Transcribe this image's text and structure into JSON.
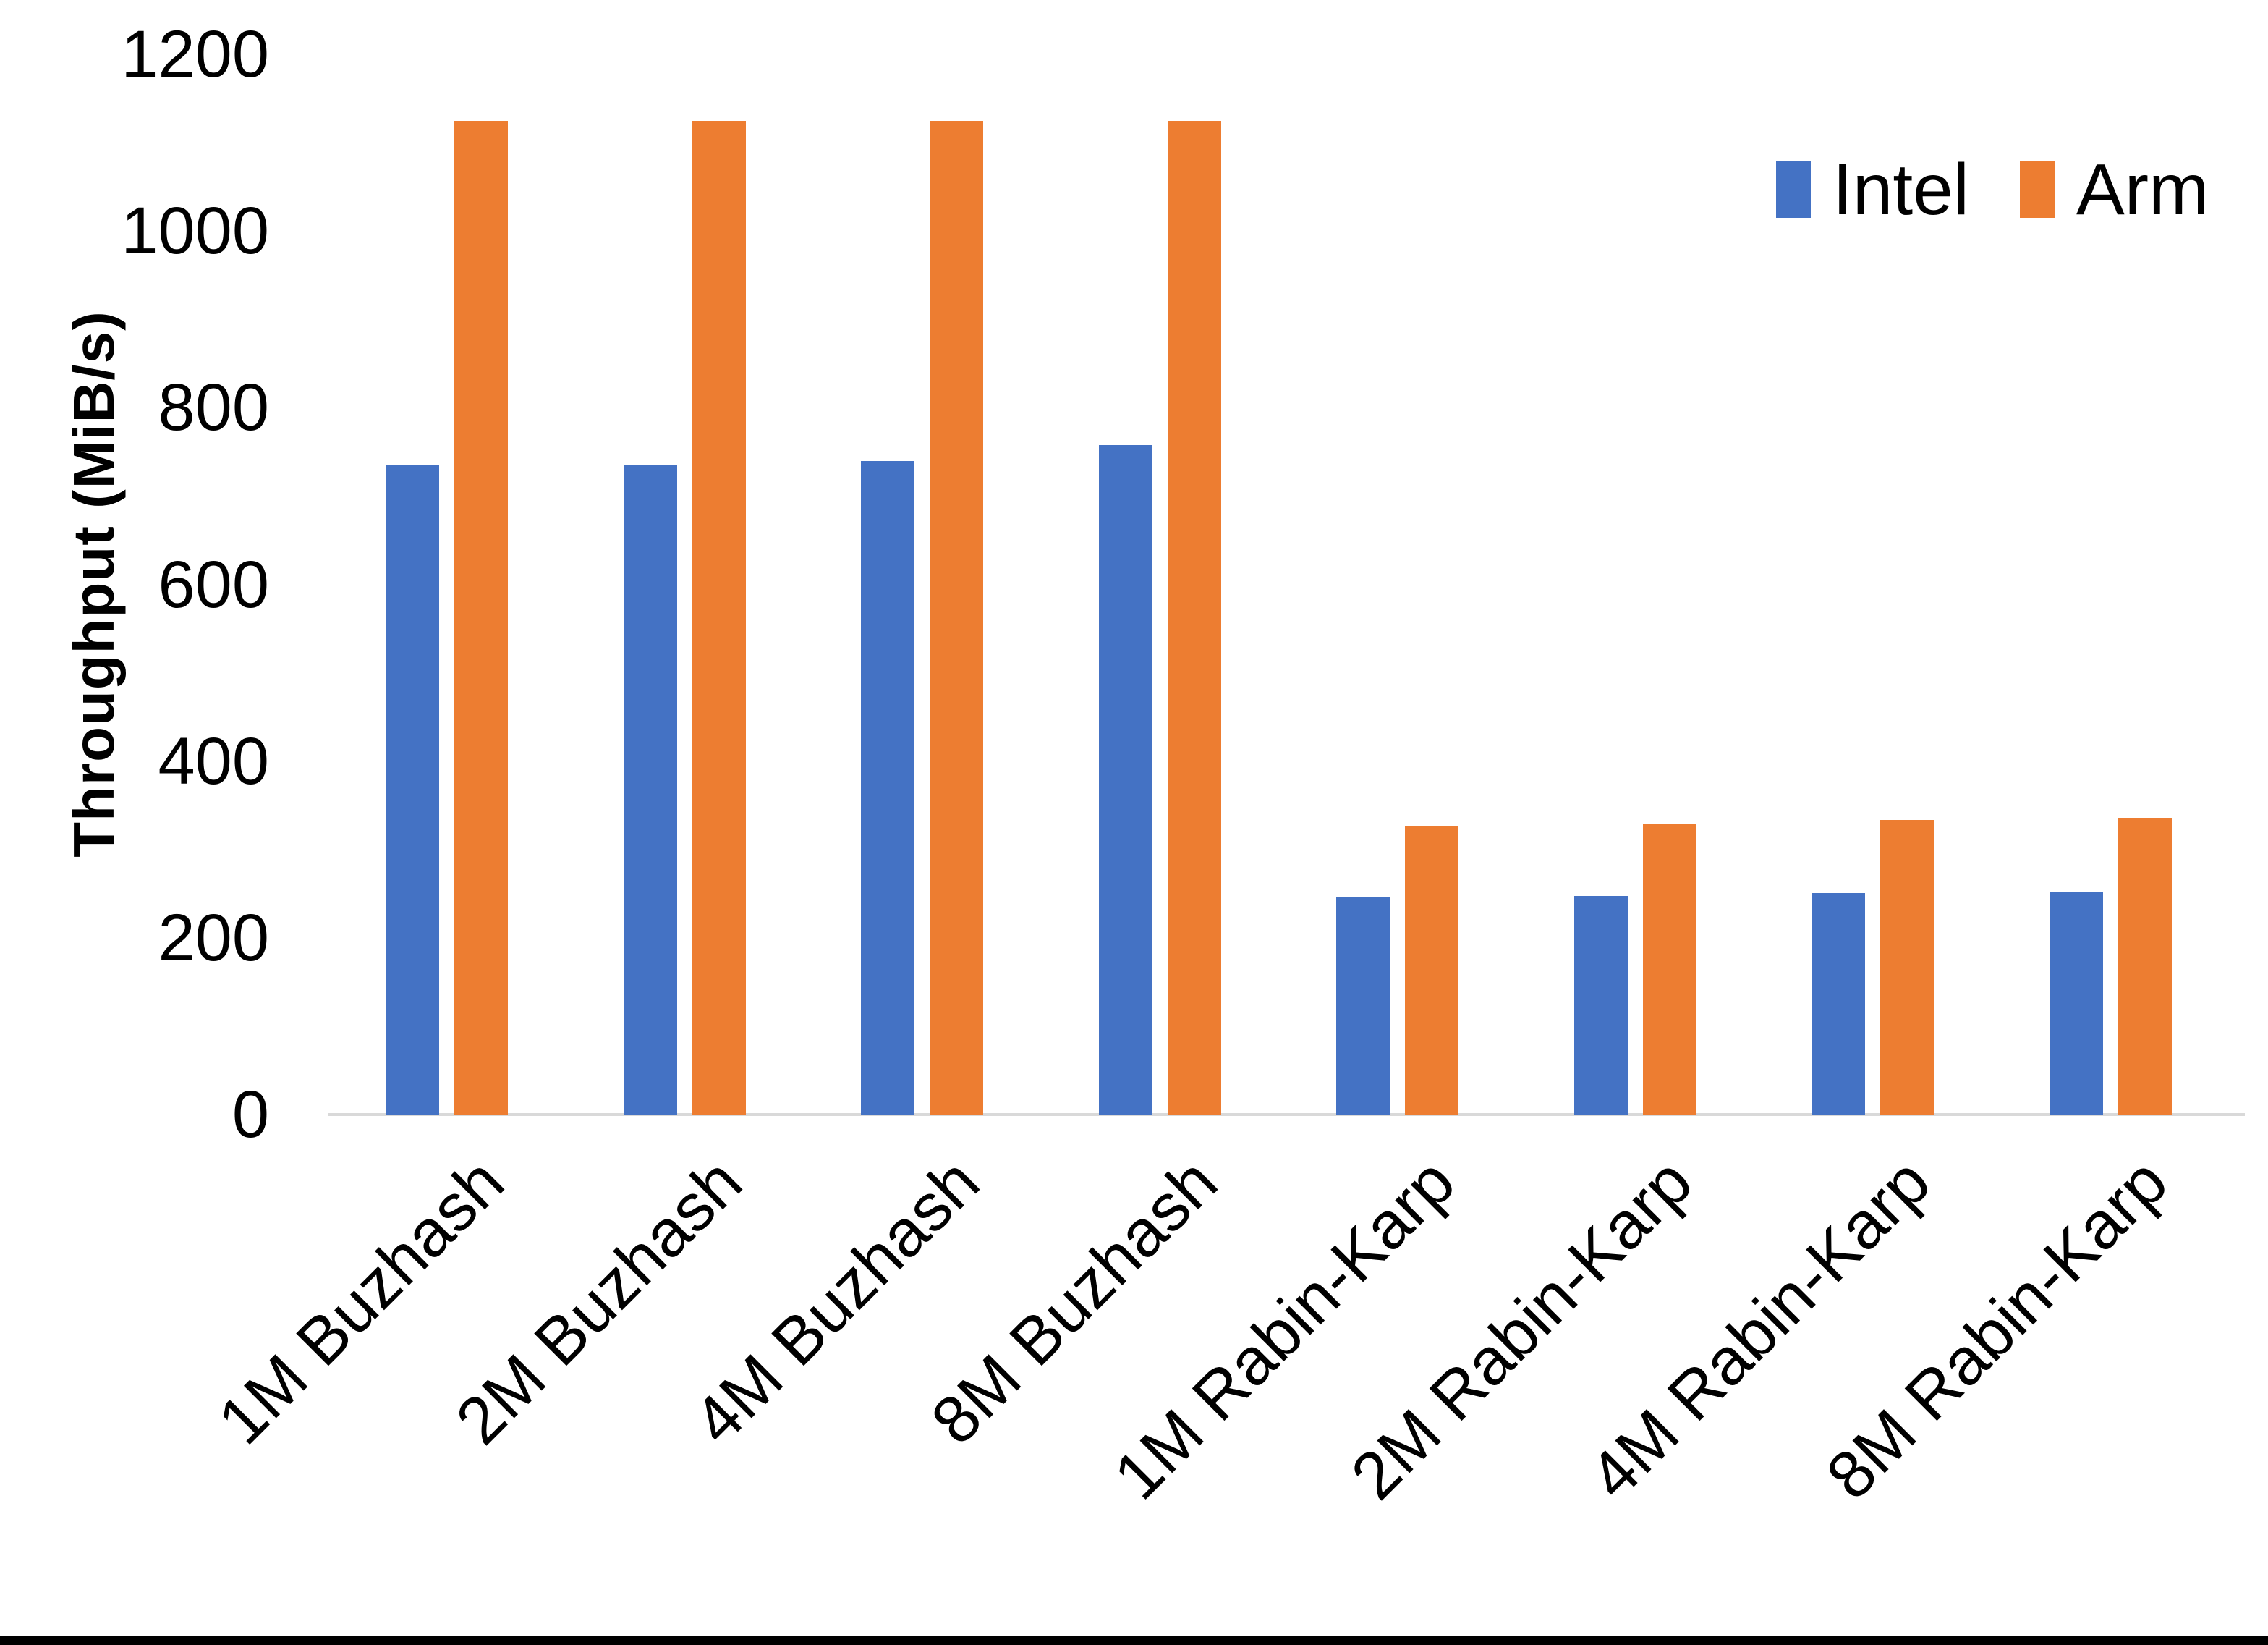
{
  "chart_data": {
    "type": "bar",
    "title": "",
    "xlabel": "",
    "ylabel": "Throughput (MiB/s)",
    "ylim": [
      0,
      1200
    ],
    "yticks": [
      1200,
      1000,
      800,
      600,
      400,
      200,
      0
    ],
    "grid": false,
    "legend_position": "top-right",
    "categories": [
      "1M Buzhash",
      "2M Buzhash",
      "4M Buzhash",
      "8M Buzhash",
      "1M Rabin-Karp",
      "2M Rabin-Karp",
      "4M Rabin-Karp",
      "8M Rabin-Karp"
    ],
    "series": [
      {
        "name": "Intel",
        "color": "#4472C4",
        "values": [
          735,
          735,
          740,
          758,
          246,
          247,
          251,
          252
        ]
      },
      {
        "name": "Arm",
        "color": "#ED7D31",
        "values": [
          1125,
          1125,
          1125,
          1125,
          327,
          329,
          333,
          336
        ]
      }
    ],
    "axis_line_color": "#D9D9D9",
    "text_color": "#000000",
    "background_color": "#FFFFFF",
    "bottom_border_color": "#000000"
  }
}
